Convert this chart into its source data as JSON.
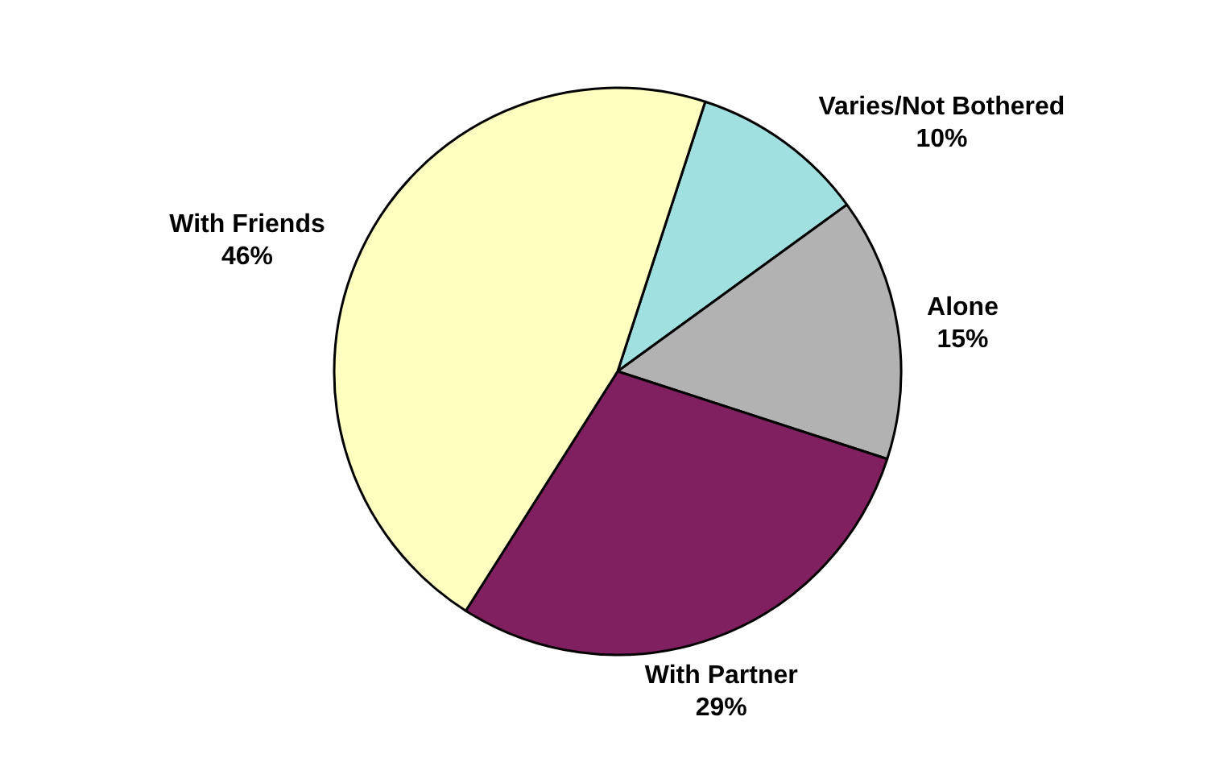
{
  "chart_data": {
    "type": "pie",
    "categories": [
      "Varies/Not Bothered",
      "Alone",
      "With Partner",
      "With Friends"
    ],
    "values": [
      10,
      15,
      29,
      46
    ],
    "value_labels": [
      "10%",
      "15%",
      "29%",
      "46%"
    ],
    "colors": [
      "#a0e0e0",
      "#b2b2b2",
      "#802060",
      "#ffffc0"
    ]
  }
}
